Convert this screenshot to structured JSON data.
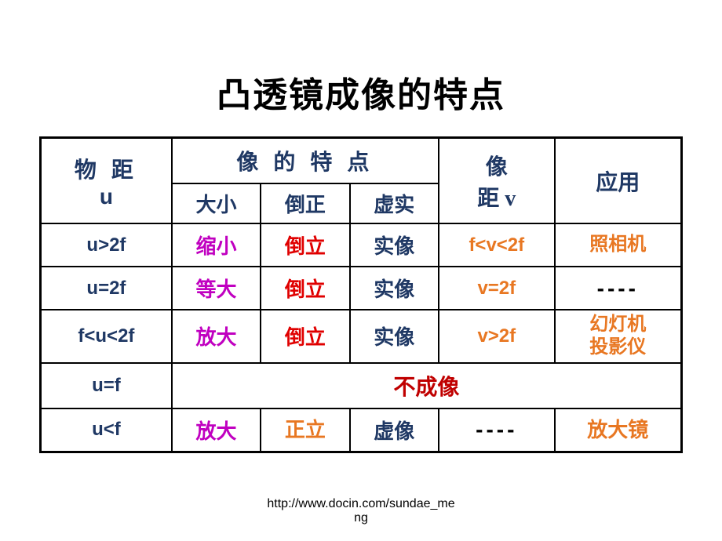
{
  "title": "凸透镜成像的特点",
  "headers": {
    "object_distance": "物 距",
    "object_distance_sub": "u",
    "image_features": "像 的 特 点",
    "size": "大小",
    "orientation": "倒正",
    "real_virtual": "虚实",
    "image_distance": "像",
    "image_distance_sub": "距 v",
    "application": "应用"
  },
  "rows": [
    {
      "u": "u>2f",
      "size": "缩小",
      "orientation": "倒立",
      "real_virtual": "实像",
      "v": "f<v<2f",
      "application": "照相机"
    },
    {
      "u": "u=2f",
      "size": "等大",
      "orientation": "倒立",
      "real_virtual": "实像",
      "v": "v=2f",
      "application": "----"
    },
    {
      "u": "f<u<2f",
      "size": "放大",
      "orientation": "倒立",
      "real_virtual": "实像",
      "v": "v>2f",
      "application": "幻灯机\n投影仪"
    },
    {
      "u": "u=f",
      "no_image": "不成像"
    },
    {
      "u": "u<f",
      "size": "放大",
      "orientation": "正立",
      "real_virtual": "虚像",
      "v": "----",
      "application": "放大镜"
    }
  ],
  "footer": "http://www.docin.com/sundae_me",
  "footer2": "ng",
  "colors": {
    "title": "#000000",
    "header_text": "#1f3864",
    "magenta": "#c000c0",
    "red": "#e00000",
    "darkblue": "#1f3864",
    "orange": "#e87722",
    "border": "#000000",
    "background": "#ffffff"
  },
  "table_style": {
    "outer_border_width": 3,
    "inner_border_width": 2,
    "font_weight": "bold"
  }
}
